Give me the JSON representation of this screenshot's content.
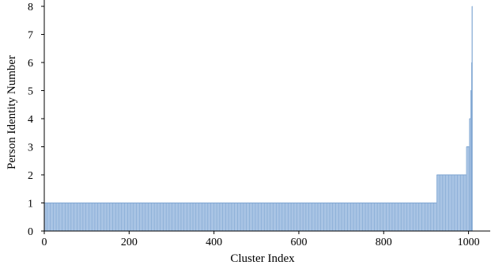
{
  "chart_data": {
    "type": "bar",
    "title": "",
    "xlabel": "Cluster Index",
    "ylabel": "Person Identity Number",
    "xlim": [
      0,
      1025
    ],
    "ylim": [
      0,
      8
    ],
    "xticks": [
      0,
      200,
      400,
      600,
      800,
      1000
    ],
    "yticks": [
      0,
      1,
      2,
      3,
      4,
      5,
      6,
      7,
      8
    ],
    "grid": false,
    "legend": "none",
    "bar_fill": "#a9c4e4",
    "bar_edge": "#7fa6d2",
    "axis_color": "#000000",
    "segments": [
      {
        "x_start": 0,
        "x_end": 925,
        "value": 1
      },
      {
        "x_start": 925,
        "x_end": 995,
        "value": 2
      },
      {
        "x_start": 995,
        "x_end": 1002,
        "value": 3
      },
      {
        "x_start": 1002,
        "x_end": 1005,
        "value": 4
      },
      {
        "x_start": 1005,
        "x_end": 1007,
        "value": 5
      },
      {
        "x_start": 1007,
        "x_end": 1008,
        "value": 6
      },
      {
        "x_start": 1008,
        "x_end": 1009,
        "value": 8
      }
    ]
  }
}
